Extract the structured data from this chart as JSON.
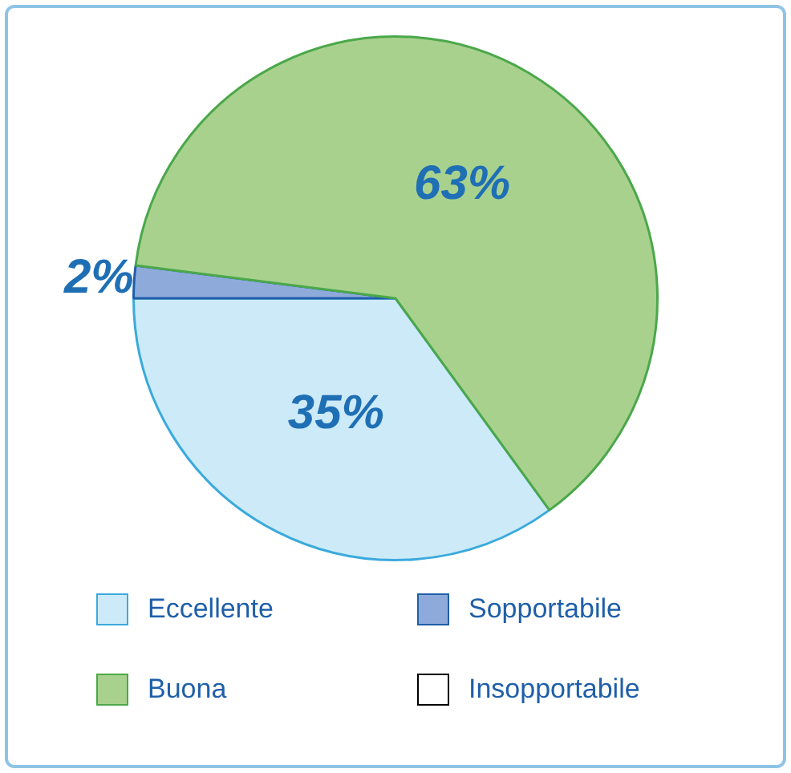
{
  "chart_data": {
    "type": "pie",
    "categories": [
      "Eccellente",
      "Sopportabile",
      "Buona",
      "Insopportabile"
    ],
    "values": [
      35,
      2,
      63,
      0
    ],
    "colors": [
      "#cdeaf8",
      "#8eaadb",
      "#a9d18e",
      "#ffffff"
    ],
    "value_labels": [
      "35%",
      "2%",
      "63%",
      null
    ],
    "legend": "bottom"
  }
}
